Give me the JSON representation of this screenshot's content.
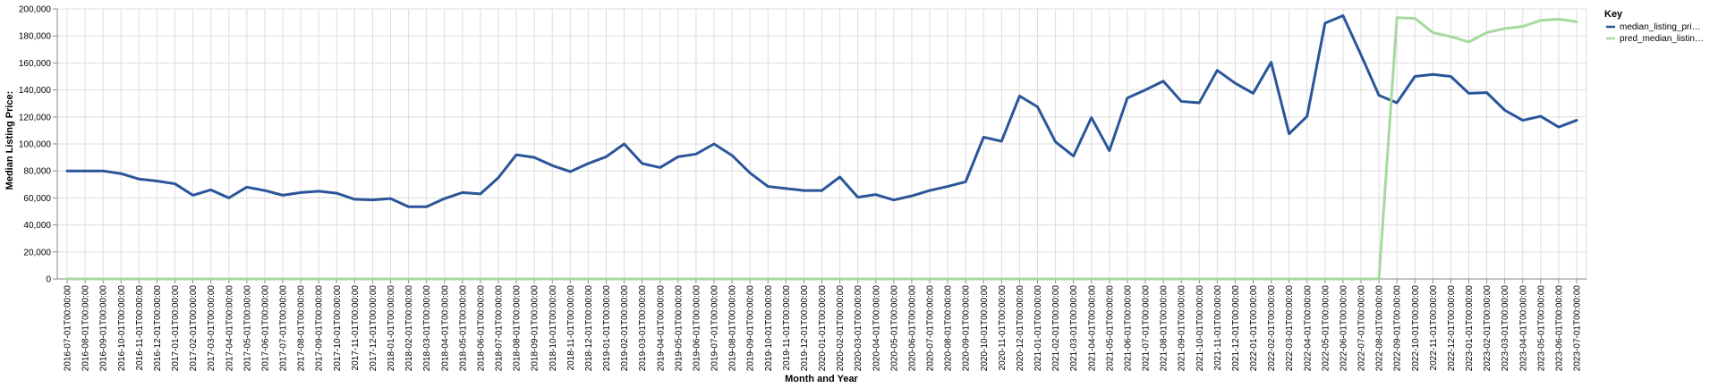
{
  "chart_data": {
    "type": "line",
    "xlabel": "Month and Year",
    "ylabel": "Median Listing Price:",
    "ylim": [
      0,
      200000
    ],
    "yticks": [
      "0",
      "20,000",
      "40,000",
      "60,000",
      "80,000",
      "100,000",
      "120,000",
      "140,000",
      "160,000",
      "180,000",
      "200,000"
    ],
    "grid": true,
    "legend_position": "right",
    "legend_title": "Key",
    "x": [
      "2016-07-01T00:00:00",
      "2016-08-01T00:00:00",
      "2016-09-01T00:00:00",
      "2016-10-01T00:00:00",
      "2016-11-01T00:00:00",
      "2016-12-01T00:00:00",
      "2017-01-01T00:00:00",
      "2017-02-01T00:00:00",
      "2017-03-01T00:00:00",
      "2017-04-01T00:00:00",
      "2017-05-01T00:00:00",
      "2017-06-01T00:00:00",
      "2017-07-01T00:00:00",
      "2017-08-01T00:00:00",
      "2017-09-01T00:00:00",
      "2017-10-01T00:00:00",
      "2017-11-01T00:00:00",
      "2017-12-01T00:00:00",
      "2018-01-01T00:00:00",
      "2018-02-01T00:00:00",
      "2018-03-01T00:00:00",
      "2018-04-01T00:00:00",
      "2018-05-01T00:00:00",
      "2018-06-01T00:00:00",
      "2018-07-01T00:00:00",
      "2018-08-01T00:00:00",
      "2018-09-01T00:00:00",
      "2018-10-01T00:00:00",
      "2018-11-01T00:00:00",
      "2018-12-01T00:00:00",
      "2019-01-01T00:00:00",
      "2019-02-01T00:00:00",
      "2019-03-01T00:00:00",
      "2019-04-01T00:00:00",
      "2019-05-01T00:00:00",
      "2019-06-01T00:00:00",
      "2019-07-01T00:00:00",
      "2019-08-01T00:00:00",
      "2019-09-01T00:00:00",
      "2019-10-01T00:00:00",
      "2019-11-01T00:00:00",
      "2019-12-01T00:00:00",
      "2020-01-01T00:00:00",
      "2020-02-01T00:00:00",
      "2020-03-01T00:00:00",
      "2020-04-01T00:00:00",
      "2020-05-01T00:00:00",
      "2020-06-01T00:00:00",
      "2020-07-01T00:00:00",
      "2020-08-01T00:00:00",
      "2020-09-01T00:00:00",
      "2020-10-01T00:00:00",
      "2020-11-01T00:00:00",
      "2020-12-01T00:00:00",
      "2021-01-01T00:00:00",
      "2021-02-01T00:00:00",
      "2021-03-01T00:00:00",
      "2021-04-01T00:00:00",
      "2021-05-01T00:00:00",
      "2021-06-01T00:00:00",
      "2021-07-01T00:00:00",
      "2021-08-01T00:00:00",
      "2021-09-01T00:00:00",
      "2021-10-01T00:00:00",
      "2021-11-01T00:00:00",
      "2021-12-01T00:00:00",
      "2022-01-01T00:00:00",
      "2022-02-01T00:00:00",
      "2022-03-01T00:00:00",
      "2022-04-01T00:00:00",
      "2022-05-01T00:00:00",
      "2022-06-01T00:00:00",
      "2022-07-01T00:00:00",
      "2022-08-01T00:00:00",
      "2022-09-01T00:00:00",
      "2022-10-01T00:00:00",
      "2022-11-01T00:00:00",
      "2022-12-01T00:00:00",
      "2023-01-01T00:00:00",
      "2023-02-01T00:00:00",
      "2023-03-01T00:00:00",
      "2023-04-01T00:00:00",
      "2023-05-01T00:00:00",
      "2023-06-01T00:00:00",
      "2023-07-01T00:00:00"
    ],
    "series": [
      {
        "name": "median_listing_pri…",
        "color": "#2a5599",
        "values": [
          80000,
          80000,
          80000,
          78000,
          74000,
          72500,
          70500,
          62000,
          66000,
          60000,
          68000,
          65500,
          62000,
          64000,
          65000,
          63500,
          59000,
          58500,
          59500,
          53500,
          53500,
          59500,
          64000,
          63000,
          75000,
          92000,
          90000,
          84000,
          79500,
          85500,
          90500,
          100000,
          85500,
          82500,
          90500,
          92500,
          100000,
          91500,
          78500,
          68500,
          67000,
          65500,
          65500,
          75500,
          60500,
          62500,
          58500,
          61500,
          65500,
          68500,
          72000,
          105000,
          102000,
          135500,
          127500,
          101500,
          91000,
          119500,
          95000,
          134000,
          140000,
          146500,
          131500,
          130500,
          154500,
          145000,
          137500,
          160500,
          107500,
          120500,
          189500,
          195000,
          166000,
          136000,
          130500,
          150000,
          151500,
          150000,
          137500,
          138000,
          125000,
          117500,
          120500,
          112500,
          117500
        ]
      },
      {
        "name": "pred_median_listin…",
        "color": "#a6d99e",
        "values": [
          0,
          0,
          0,
          0,
          0,
          0,
          0,
          0,
          0,
          0,
          0,
          0,
          0,
          0,
          0,
          0,
          0,
          0,
          0,
          0,
          0,
          0,
          0,
          0,
          0,
          0,
          0,
          0,
          0,
          0,
          0,
          0,
          0,
          0,
          0,
          0,
          0,
          0,
          0,
          0,
          0,
          0,
          0,
          0,
          0,
          0,
          0,
          0,
          0,
          0,
          0,
          0,
          0,
          0,
          0,
          0,
          0,
          0,
          0,
          0,
          0,
          0,
          0,
          0,
          0,
          0,
          0,
          0,
          0,
          0,
          0,
          0,
          0,
          0,
          193500,
          193000,
          182500,
          179500,
          175500,
          182500,
          185500,
          187000,
          191500,
          192500,
          190500
        ]
      }
    ]
  }
}
